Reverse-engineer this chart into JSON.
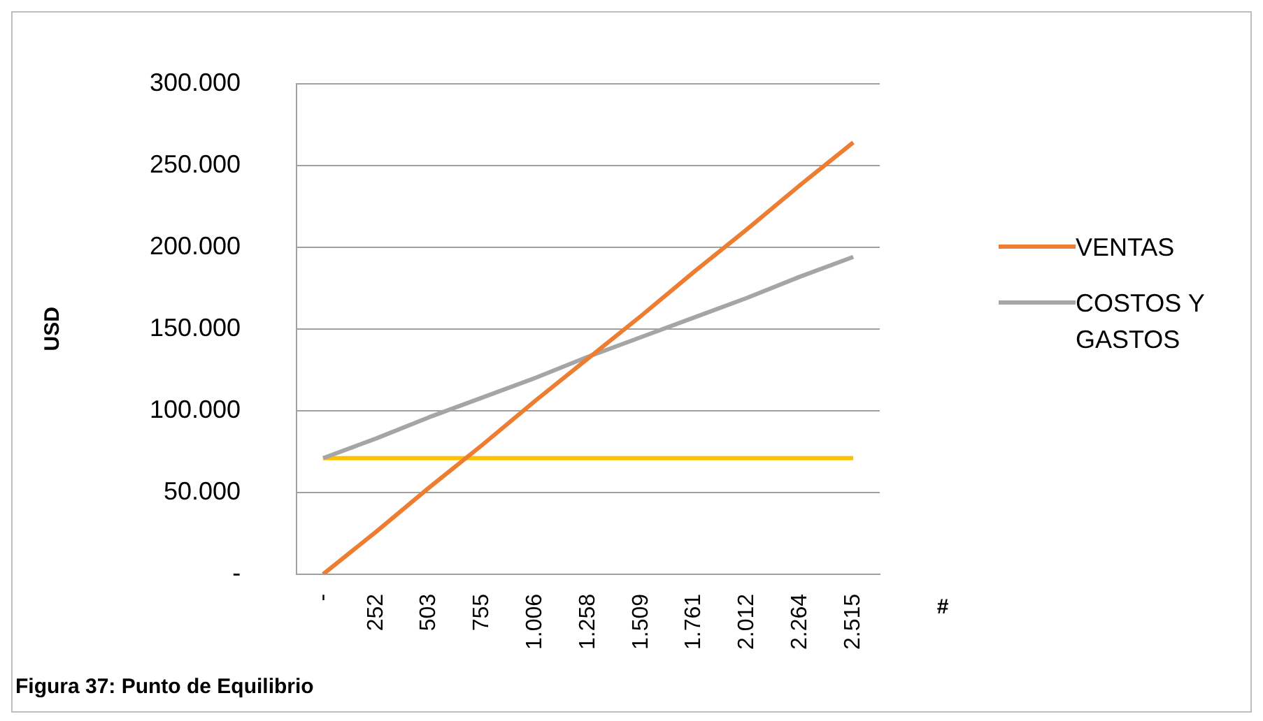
{
  "chart_data": {
    "type": "line",
    "ylabel": "USD",
    "xlabel": "#",
    "categories": [
      "-",
      "252",
      "503",
      "755",
      "1.006",
      "1.258",
      "1.509",
      "1.761",
      "2.012",
      "2.264",
      "2.515"
    ],
    "series": [
      {
        "name": "VENTAS",
        "color": "#ed7d31",
        "values": [
          0,
          26000,
          53000,
          79000,
          106000,
          132000,
          158000,
          185000,
          211000,
          238000,
          264000
        ]
      },
      {
        "name": "COSTOS Y GASTOS",
        "color": "#a5a5a5",
        "values": [
          71000,
          83000,
          96000,
          108000,
          120000,
          133000,
          145000,
          157000,
          169000,
          182000,
          194000
        ]
      },
      {
        "color": "#ffc000",
        "values": [
          71000,
          71000,
          71000,
          71000,
          71000,
          71000,
          71000,
          71000,
          71000,
          71000,
          71000
        ]
      }
    ],
    "ylim": [
      0,
      300000
    ],
    "yticks": [
      {
        "value": 0,
        "label": "-"
      },
      {
        "value": 50000,
        "label": "50.000"
      },
      {
        "value": 100000,
        "label": "100.000"
      },
      {
        "value": 150000,
        "label": "150.000"
      },
      {
        "value": 200000,
        "label": "200.000"
      },
      {
        "value": 250000,
        "label": "250.000"
      },
      {
        "value": 300000,
        "label": "300.000"
      }
    ],
    "grid": "y",
    "legend": "right",
    "marker": "none",
    "line_style": "solid",
    "annotations": [
      "Figura 37: Punto de Equilibrio"
    ]
  }
}
